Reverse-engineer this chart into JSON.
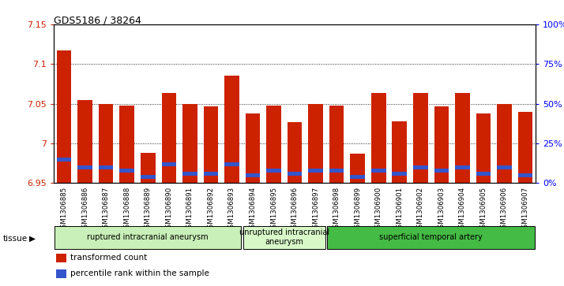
{
  "title": "GDS5186 / 38264",
  "samples": [
    "GSM1306885",
    "GSM1306886",
    "GSM1306887",
    "GSM1306888",
    "GSM1306889",
    "GSM1306890",
    "GSM1306891",
    "GSM1306892",
    "GSM1306893",
    "GSM1306894",
    "GSM1306895",
    "GSM1306896",
    "GSM1306897",
    "GSM1306898",
    "GSM1306899",
    "GSM1306900",
    "GSM1306901",
    "GSM1306902",
    "GSM1306903",
    "GSM1306904",
    "GSM1306905",
    "GSM1306906",
    "GSM1306907"
  ],
  "red_values": [
    7.117,
    7.055,
    7.05,
    7.048,
    6.988,
    7.063,
    7.05,
    7.047,
    7.085,
    7.038,
    7.048,
    7.027,
    7.05,
    7.048,
    6.987,
    7.063,
    7.028,
    7.063,
    7.047,
    7.063,
    7.038,
    7.05,
    7.04
  ],
  "blue_pct": [
    15,
    10,
    10,
    8,
    4,
    12,
    6,
    6,
    12,
    5,
    8,
    6,
    8,
    8,
    4,
    8,
    6,
    10,
    8,
    10,
    6,
    10,
    5
  ],
  "y_min": 6.95,
  "y_max": 7.15,
  "y_ticks": [
    6.95,
    7.0,
    7.05,
    7.1,
    7.15
  ],
  "y_tick_labels": [
    "6.95",
    "7",
    "7.05",
    "7.1",
    "7.15"
  ],
  "y2_ticks": [
    0,
    25,
    50,
    75,
    100
  ],
  "y2_labels": [
    "0%",
    "25%",
    "50%",
    "75%",
    "100%"
  ],
  "bar_color_red": "#cc2200",
  "bar_color_blue": "#3355cc",
  "bg_plot": "#ffffff",
  "bg_xlabels": "#d8d8d8",
  "group_defs": [
    {
      "start": 0,
      "end": 8,
      "label": "ruptured intracranial aneurysm",
      "color": "#c8f0b8"
    },
    {
      "start": 9,
      "end": 12,
      "label": "unruptured intracranial\naneurysm",
      "color": "#d8f8c8"
    },
    {
      "start": 13,
      "end": 22,
      "label": "superficial temporal artery",
      "color": "#44bb44"
    }
  ],
  "legend_items": [
    {
      "color": "#cc2200",
      "label": "transformed count"
    },
    {
      "color": "#3355cc",
      "label": "percentile rank within the sample"
    }
  ]
}
